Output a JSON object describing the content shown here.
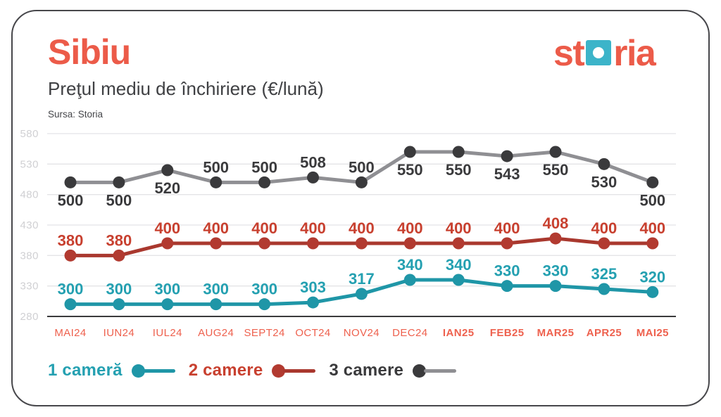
{
  "header": {
    "title": "Sibiu",
    "subtitle": "Preţul mediu de închiriere (€/lună)",
    "source": "Sursa: Storia",
    "logo": {
      "part1": "st",
      "part2": "ria"
    }
  },
  "colors": {
    "accent_coral": "#ec5b49",
    "logo_teal": "#3cb4c9",
    "month_text": "#ee614e",
    "ytick_text": "#d0d0d3",
    "gridline": "#e4e4e6",
    "axis_line": "#3a3a3c",
    "dark_text": "#3a3a3c"
  },
  "chart_data": {
    "type": "line",
    "title": "Preţul mediu de închiriere (€/lună)",
    "xlabel": "",
    "ylabel": "",
    "ylim": [
      280,
      580
    ],
    "yticks": [
      280,
      330,
      380,
      430,
      480,
      530,
      580
    ],
    "grid": true,
    "legend_position": "bottom-left",
    "categories": [
      "MAI24",
      "IUN24",
      "IUL24",
      "AUG24",
      "SEPT24",
      "OCT24",
      "NOV24",
      "DEC24",
      "IAN25",
      "FEB25",
      "MAR25",
      "APR25",
      "MAI25"
    ],
    "category_bold": [
      false,
      false,
      false,
      false,
      false,
      false,
      false,
      false,
      true,
      true,
      true,
      true,
      true
    ],
    "series": [
      {
        "name": "1 cameră",
        "values": [
          300,
          300,
          300,
          300,
          300,
          303,
          317,
          340,
          340,
          330,
          330,
          325,
          320
        ],
        "line_color": "#1f96a7",
        "dot_color": "#1f96a7",
        "label_color": "#24a0b1",
        "label_pos": [
          "above",
          "above",
          "above",
          "above",
          "above",
          "above",
          "above",
          "above",
          "above",
          "above",
          "above",
          "above",
          "above"
        ]
      },
      {
        "name": "2 camere",
        "values": [
          380,
          380,
          400,
          400,
          400,
          400,
          400,
          400,
          400,
          400,
          408,
          400,
          400
        ],
        "line_color": "#a9382e",
        "dot_color": "#b23a30",
        "label_color": "#c8402f",
        "label_pos": [
          "above",
          "above",
          "above",
          "above",
          "above",
          "above",
          "above",
          "above",
          "above",
          "above",
          "above",
          "above",
          "above"
        ]
      },
      {
        "name": "3 camere",
        "values": [
          500,
          500,
          520,
          500,
          500,
          508,
          500,
          550,
          550,
          543,
          550,
          530,
          500
        ],
        "line_color": "#8f8f93",
        "dot_color": "#3a3a3c",
        "label_color": "#3a3a3c",
        "label_pos": [
          "below",
          "below",
          "below",
          "above",
          "above",
          "above",
          "above",
          "below",
          "below",
          "below",
          "below",
          "below",
          "below"
        ]
      }
    ]
  }
}
